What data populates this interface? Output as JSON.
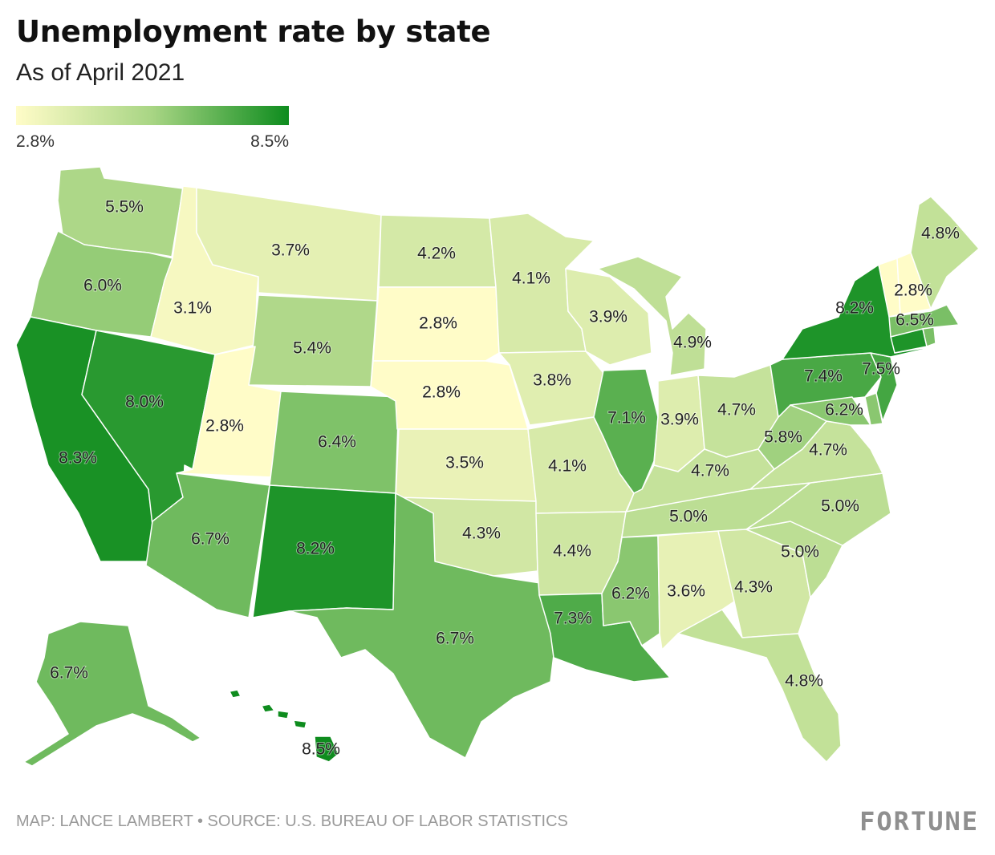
{
  "title": "Unemployment rate by state",
  "subtitle": "As of April 2021",
  "legend": {
    "min_label": "2.8%",
    "max_label": "8.5%",
    "min_value": 2.8,
    "max_value": 8.5,
    "color_low": "#fffcc8",
    "color_mid": "#a8d584",
    "color_high": "#0e8c1e"
  },
  "footer": {
    "source": "MAP: LANCE LAMBERT • SOURCE: U.S. BUREAU OF LABOR STATISTICS",
    "brand": "FORTUNE"
  },
  "chart_data": {
    "type": "choropleth",
    "units": "%",
    "states": [
      {
        "id": "WA",
        "value": 5.5,
        "label": "5.5%"
      },
      {
        "id": "OR",
        "value": 6.0,
        "label": "6.0%"
      },
      {
        "id": "CA",
        "value": 8.3,
        "label": "8.3%"
      },
      {
        "id": "NV",
        "value": 8.0,
        "label": "8.0%"
      },
      {
        "id": "ID",
        "value": 3.1,
        "label": "3.1%"
      },
      {
        "id": "MT",
        "value": 3.7,
        "label": "3.7%"
      },
      {
        "id": "WY",
        "value": 5.4,
        "label": "5.4%"
      },
      {
        "id": "UT",
        "value": 2.8,
        "label": "2.8%"
      },
      {
        "id": "CO",
        "value": 6.4,
        "label": "6.4%"
      },
      {
        "id": "AZ",
        "value": 6.7,
        "label": "6.7%"
      },
      {
        "id": "NM",
        "value": 8.2,
        "label": "8.2%"
      },
      {
        "id": "ND",
        "value": 4.2,
        "label": "4.2%"
      },
      {
        "id": "SD",
        "value": 2.8,
        "label": "2.8%"
      },
      {
        "id": "NE",
        "value": 2.8,
        "label": "2.8%"
      },
      {
        "id": "KS",
        "value": 3.5,
        "label": "3.5%"
      },
      {
        "id": "OK",
        "value": 4.3,
        "label": "4.3%"
      },
      {
        "id": "TX",
        "value": 6.7,
        "label": "6.7%"
      },
      {
        "id": "MN",
        "value": 4.1,
        "label": "4.1%"
      },
      {
        "id": "IA",
        "value": 3.8,
        "label": "3.8%"
      },
      {
        "id": "MO",
        "value": 4.1,
        "label": "4.1%"
      },
      {
        "id": "AR",
        "value": 4.4,
        "label": "4.4%"
      },
      {
        "id": "LA",
        "value": 7.3,
        "label": "7.3%"
      },
      {
        "id": "WI",
        "value": 3.9,
        "label": "3.9%"
      },
      {
        "id": "IL",
        "value": 7.1,
        "label": "7.1%"
      },
      {
        "id": "MI",
        "value": 4.9,
        "label": "4.9%"
      },
      {
        "id": "IN",
        "value": 3.9,
        "label": "3.9%"
      },
      {
        "id": "OH",
        "value": 4.7,
        "label": "4.7%"
      },
      {
        "id": "KY",
        "value": 4.7,
        "label": "4.7%"
      },
      {
        "id": "TN",
        "value": 5.0,
        "label": "5.0%"
      },
      {
        "id": "MS",
        "value": 6.2,
        "label": "6.2%"
      },
      {
        "id": "AL",
        "value": 3.6,
        "label": "3.6%"
      },
      {
        "id": "GA",
        "value": 4.3,
        "label": "4.3%"
      },
      {
        "id": "FL",
        "value": 4.8,
        "label": "4.8%"
      },
      {
        "id": "SC",
        "value": 5.0,
        "label": "5.0%"
      },
      {
        "id": "NC",
        "value": 5.0,
        "label": "5.0%"
      },
      {
        "id": "VA",
        "value": 4.7,
        "label": "4.7%"
      },
      {
        "id": "WV",
        "value": 5.8,
        "label": "5.8%"
      },
      {
        "id": "MD",
        "value": 6.2,
        "label": "6.2%"
      },
      {
        "id": "DE",
        "value": 6.2,
        "label": ""
      },
      {
        "id": "PA",
        "value": 7.4,
        "label": "7.4%"
      },
      {
        "id": "NJ",
        "value": 7.5,
        "label": "7.5%"
      },
      {
        "id": "NY",
        "value": 8.2,
        "label": "8.2%"
      },
      {
        "id": "CT",
        "value": 8.2,
        "label": ""
      },
      {
        "id": "RI",
        "value": 6.5,
        "label": ""
      },
      {
        "id": "MA",
        "value": 6.5,
        "label": "6.5%"
      },
      {
        "id": "VT",
        "value": 2.8,
        "label": ""
      },
      {
        "id": "NH",
        "value": 2.8,
        "label": "2.8%"
      },
      {
        "id": "ME",
        "value": 4.8,
        "label": "4.8%"
      },
      {
        "id": "AK",
        "value": 6.7,
        "label": "6.7%"
      },
      {
        "id": "HI",
        "value": 8.5,
        "label": "8.5%"
      }
    ]
  }
}
